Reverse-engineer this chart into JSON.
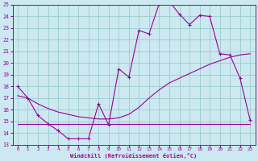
{
  "xlabel": "Windchill (Refroidissement éolien,°C)",
  "xlim": [
    -0.5,
    23.5
  ],
  "ylim": [
    13,
    25
  ],
  "xtick_labels": [
    "0",
    "1",
    "2",
    "3",
    "4",
    "5",
    "6",
    "7",
    "8",
    "9",
    "10",
    "11",
    "12",
    "13",
    "14",
    "15",
    "16",
    "17",
    "18",
    "19",
    "20",
    "21",
    "22",
    "23"
  ],
  "xtick_pos": [
    0,
    1,
    2,
    3,
    4,
    5,
    6,
    7,
    8,
    9,
    10,
    11,
    12,
    13,
    14,
    15,
    16,
    17,
    18,
    19,
    20,
    21,
    22,
    23
  ],
  "ytick_pos": [
    13,
    14,
    15,
    16,
    17,
    18,
    19,
    20,
    21,
    22,
    23,
    24,
    25
  ],
  "bg_color": "#cce8f0",
  "line_color": "#990099",
  "grid_color": "#99cccc",
  "curve1_x": [
    0,
    1,
    2,
    3,
    4,
    5,
    6,
    7,
    8,
    9,
    10,
    11,
    12,
    13,
    14,
    15,
    16,
    17,
    18,
    19,
    20,
    21,
    22,
    23
  ],
  "curve1_y": [
    18.0,
    17.0,
    15.5,
    14.8,
    14.2,
    13.5,
    13.5,
    13.5,
    16.5,
    14.7,
    19.5,
    18.8,
    22.8,
    22.5,
    25.1,
    25.3,
    24.2,
    23.3,
    24.1,
    24.0,
    20.8,
    20.7,
    18.7,
    15.1
  ],
  "curve2_x": [
    0,
    1,
    2,
    3,
    4,
    5,
    6,
    7,
    8,
    9,
    10,
    11,
    12,
    13,
    14,
    15,
    16,
    17,
    18,
    19,
    20,
    21,
    22,
    23
  ],
  "curve2_y": [
    17.2,
    17.0,
    16.5,
    16.1,
    15.8,
    15.6,
    15.4,
    15.3,
    15.2,
    15.2,
    15.3,
    15.6,
    16.2,
    17.0,
    17.7,
    18.3,
    18.7,
    19.1,
    19.5,
    19.9,
    20.2,
    20.5,
    20.7,
    20.8
  ],
  "curve3_x": [
    0,
    1,
    2,
    3,
    4,
    5,
    6,
    7,
    8,
    9,
    10,
    11,
    12,
    13,
    14,
    15,
    16,
    17,
    18,
    19,
    20,
    21,
    22,
    23
  ],
  "curve3_y": [
    14.8,
    14.8,
    14.8,
    14.8,
    14.8,
    14.8,
    14.8,
    14.8,
    14.8,
    14.8,
    14.8,
    14.8,
    14.8,
    14.8,
    14.8,
    14.8,
    14.8,
    14.8,
    14.8,
    14.8,
    14.8,
    14.8,
    14.8,
    14.8
  ]
}
